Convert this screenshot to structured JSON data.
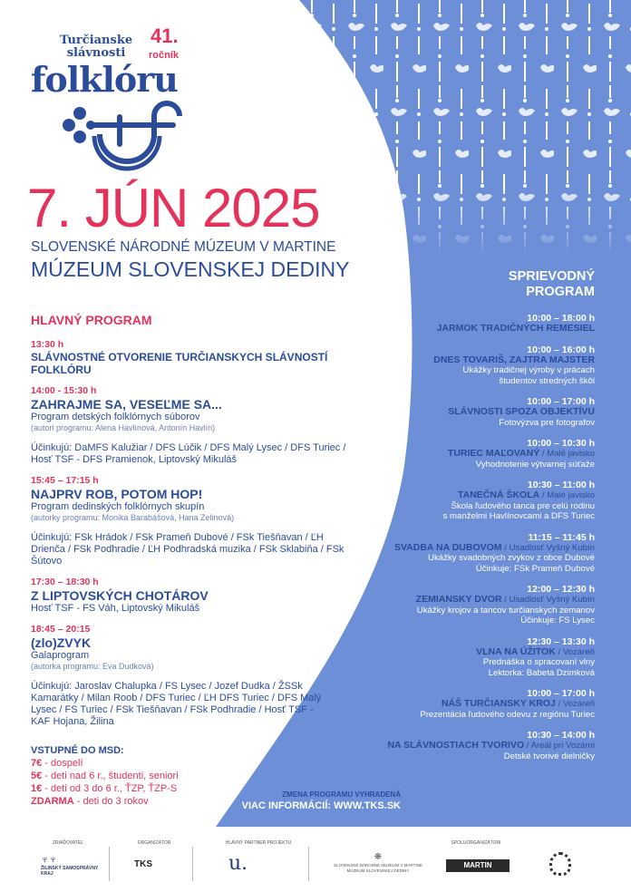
{
  "logo": {
    "line1": "Turčianske",
    "line2": "slávnosti",
    "line3": "folklóru",
    "edition": "41.",
    "edition_label": "ročník"
  },
  "colors": {
    "accent_pink": "#e5325b",
    "navy": "#2b4c9b",
    "panel_blue": "#6d8fd8"
  },
  "date": "7. JÚN 2025",
  "venue": {
    "line1": "SLOVENSKÉ NÁRODNÉ MÚZEUM V MARTINE",
    "line2": "MÚZEUM SLOVENSKEJ DEDINY"
  },
  "main_program": {
    "heading": "HLAVNÝ PROGRAM",
    "events": [
      {
        "time": "13:30 h",
        "name": "SLÁVNOSTNÉ OTVORENIE TURČIANSKYCH SLÁVNOSTÍ FOLKLÓRU"
      },
      {
        "time": "14:00 - 15:30 h",
        "name": "ZAHRAJME SA, VESEĽME SA...",
        "subtitle": "Program detských folklórnych súborov",
        "authors": "(autori programu: Alena Havlínová, Antonín Havlín)",
        "performers": "Účinkujú: DaMFS Kalužiar / DFS Lúčik / DFS Malý Lysec / DFS Turiec / Hosť TSF - DFS Pramienok, Liptovský Mikuláš"
      },
      {
        "time": "15:45 – 17:15 h",
        "name": "NAJPRV ROB, POTOM HOP!",
        "subtitle": "Program dedinských folklórnych skupín",
        "authors": "(autorky programu: Monika Barabášová, Hana Zelinová)",
        "performers": "Účinkujú: FSk Hrádok / FSk Prameň Dubové / FSk Tiešňavan / ĽH Drienča / FSk Podhradie / ĽH Podhradská muzika / FSk Sklabiňa / FSk Šútovo"
      },
      {
        "time": "17:30 – 18:30 h",
        "name": "Z LIPTOVSKÝCH CHOTÁROV",
        "subtitle": "Hosť TSF - FS Váh, Liptovský Mikuláš"
      },
      {
        "time": "18:45 – 20:15",
        "name": "(zlo)ZVYK",
        "subtitle": "Galaprogram",
        "authors": "(autorka programu: Eva Dudková)",
        "performers": "Účinkujú: Jaroslav Chalupka / FS Lysec / Jozef Dudka / ŽSSk Kamarátky / Milan Roob / DFS Turiec / ĽH DFS Turiec / DFS Malý Lysec / FS Turiec / FSk Tiešňavan / FSk Podhradie / Hosť TSF - KAF Hojana, Žilina"
      }
    ]
  },
  "admission": {
    "heading": "VSTUPNÉ DO MSD:",
    "fees": [
      {
        "price": "7€",
        "desc": " - dospelí"
      },
      {
        "price": "5€",
        "desc": " - deti nad 6 r., študenti, seniori"
      },
      {
        "price": "1€",
        "desc": " - deti od 3 do 6 r., ŤZP, ŤZP-S"
      },
      {
        "price": "ZDARMA",
        "desc": " - deti do 3 rokov"
      }
    ]
  },
  "side_program": {
    "heading1": "SPRIEVODNÝ",
    "heading2": "PROGRAM",
    "items": [
      {
        "time": "10:00 – 18:00 h",
        "name": "JARMOK TRADIČNÝCH REMESIEL",
        "venue": "",
        "desc": []
      },
      {
        "time": "10:00 – 16:00 h",
        "name": "DNES TOVARIŠ, ZAJTRA MAJSTER",
        "venue": "",
        "desc": [
          "Ukážky tradičnej výroby v prácach",
          "študentov stredných škôl"
        ]
      },
      {
        "time": "10:00 – 17:00 h",
        "name": "SLÁVNOSTI SPOZA OBJEKTÍVU",
        "venue": "",
        "desc": [
          "Fotovýzva pre fotografov"
        ]
      },
      {
        "time": "10:00 – 10:30 h",
        "name": "TURIEC MAĽOVANÝ",
        "venue": " / Malé javisko",
        "desc": [
          "Vyhodnotenie výtvarnej súťaže"
        ]
      },
      {
        "time": "10:30 – 11:00 h",
        "name": "TANEČNÁ ŠKOLA",
        "venue": " / Malé javisko",
        "desc": [
          "Škola ľudového tanca pre celú rodinu",
          "s manželmi Havlínovcami a DFS Turiec"
        ]
      },
      {
        "time": "11:15 – 11:45 h",
        "name": "SVADBA NA DUBOVOM",
        "venue": " / Usadlosť Vyšný Kubín",
        "desc": [
          "Ukážky svadobných zvykov z obce Dubové",
          "Účinkuje: FSk Prameň Dubové"
        ]
      },
      {
        "time": "12:00 – 12:30 h",
        "name": "ZEMIANSKY DVOR",
        "venue": " / Usadlosť Vyšný Kubín",
        "desc": [
          "Ukážky krojov a tancov turčianskych zemanov",
          "Účinkuje: FS Lysec"
        ]
      },
      {
        "time": "12:30 – 13:30 h",
        "name": "VLNA NA ÚŽITOK",
        "venue": " / Vozáreň",
        "desc": [
          "Prednáška o spracovaní vlny",
          "Lektorka: Babeta Dzimková"
        ]
      },
      {
        "time": "10:00 – 17:00 h",
        "name": "NÁŠ TURČIANSKY KROJ",
        "venue": " / Vozáreň",
        "desc": [
          "Prezentácia ľudového odevu z regiónu Turiec"
        ]
      },
      {
        "time": "10:30 – 14:00 h",
        "name": "NA SLÁVNOSTIACH TVORIVO",
        "venue": " / Areál pri Vozárni",
        "desc": [
          "Detské tvorivé dielničky"
        ]
      }
    ]
  },
  "info": {
    "change_note": "ZMENA PROGRAMU VYHRADENÁ",
    "website": "VIAC INFORMÁCIÍ: WWW.TKS.SK"
  },
  "footer": {
    "founder_label": "ZRIAĎOVATEĽ",
    "founder_logo": "ŽILINSKÝ SAMOSPRÁVNY KRAJ",
    "organizer_label": "ORGANIZÁTOR",
    "organizer_logo": "TKS",
    "partner_label": "HLAVNÝ PARTNER PROJEKTU",
    "partner_logo": "u.",
    "coorganizers_label": "SPOLUORGANIZÁTORI",
    "snm_logo": "SLOVENSKÉ NÁRODNÉ MÚZEUM V MARTINE MÚZEUM SLOVENSKEJ DEDINY",
    "martin_logo": "MARTIN"
  }
}
